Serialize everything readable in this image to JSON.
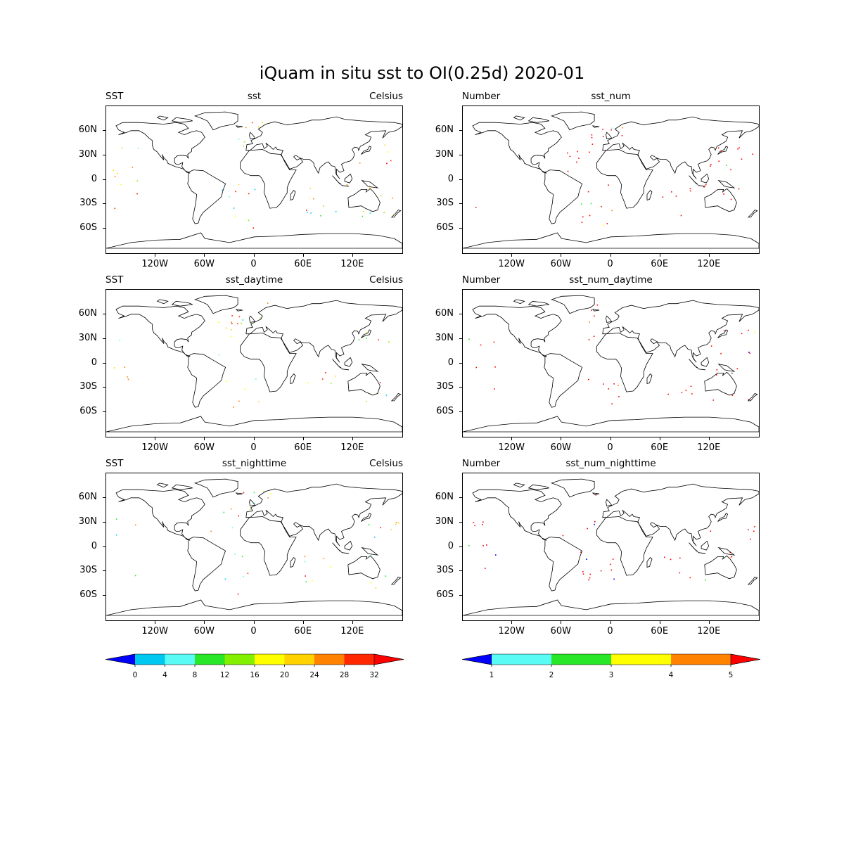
{
  "title": "iQuam in situ sst to OI(0.25d) 2020-01",
  "panels": [
    {
      "left": "SST",
      "center": "sst",
      "right": "Celsius",
      "points": 50
    },
    {
      "left": "Number",
      "center": "sst_num",
      "right": "",
      "points": 50
    },
    {
      "left": "SST",
      "center": "sst_daytime",
      "right": "Celsius",
      "points": 40
    },
    {
      "left": "Number",
      "center": "sst_num_daytime",
      "right": "",
      "points": 40
    },
    {
      "left": "SST",
      "center": "sst_nighttime",
      "right": "Celsius",
      "points": 40
    },
    {
      "left": "Number",
      "center": "sst_num_nighttime",
      "right": "",
      "points": 40
    }
  ],
  "axes": {
    "y_ticks": [
      "60N",
      "30N",
      "0",
      "30S",
      "60S"
    ],
    "x_ticks": [
      "120W",
      "60W",
      "0",
      "60E",
      "120E"
    ]
  },
  "colorbars": [
    {
      "ticks": [
        "0",
        "4",
        "8",
        "12",
        "16",
        "20",
        "24",
        "28",
        "32"
      ],
      "colors": [
        "#0000ff",
        "#00c8f0",
        "#5afaf5",
        "#28e628",
        "#82f000",
        "#ffff00",
        "#ffd200",
        "#ff8200",
        "#ff2800",
        "#ff0000"
      ]
    },
    {
      "ticks": [
        "1",
        "2",
        "3",
        "4",
        "5"
      ],
      "colors": [
        "#0000ff",
        "#5afaf5",
        "#28e628",
        "#ffff00",
        "#ff8200",
        "#ff0000"
      ]
    }
  ]
}
